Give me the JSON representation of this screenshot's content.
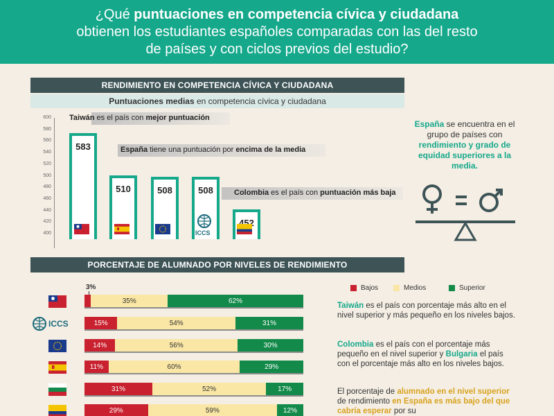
{
  "header": {
    "line1_pre": "¿Qué ",
    "line1_bold": "puntuaciones en competencia cívica y ciudadana",
    "line2": "obtienen los estudiantes españoles comparadas con las del resto",
    "line3": "de países y con ciclos previos del estudio?"
  },
  "section1": {
    "title": "RENDIMIENTO EN COMPETENCIA CÍVICA Y CIUDADANA",
    "subtitle_bold": "Puntuaciones medias",
    "subtitle_rest": " en competencia cívica y ciudadana"
  },
  "annotations": {
    "taiwan": {
      "a": "Taiwán",
      "b": " es el país con ",
      "c": "mejor puntuación"
    },
    "espana": {
      "a": "España",
      "b": " tiene una puntuación por ",
      "c": "encima de la media"
    },
    "colombia": {
      "a": "Colombia",
      "b": " es el país con ",
      "c": "puntuación más baja"
    }
  },
  "chart_data": {
    "type": "bar",
    "categories": [
      "Taiwán",
      "España",
      "UE",
      "ICCS",
      "Colombia"
    ],
    "values": [
      583,
      510,
      508,
      508,
      452
    ],
    "ylim": [
      400,
      600
    ],
    "yticks": [
      "600",
      "580",
      "560",
      "540",
      "520",
      "500",
      "480",
      "460",
      "440",
      "420",
      "400"
    ]
  },
  "iccs_label": "ICCS",
  "info_right": {
    "a": "España",
    "b": " se encuentra en el grupo de países con ",
    "c": "rendimiento y grado de equidad superiores a la media."
  },
  "section2": {
    "title": "PORCENTAJE DE ALUMNADO POR NIVELES DE RENDIMIENTO",
    "legend": {
      "bajos": "Bajos",
      "medios": "Medios",
      "superior": "Superior"
    },
    "top_label": "3%",
    "rows": [
      {
        "b": 3,
        "m": 35,
        "s": 62,
        "bl": "",
        "ml": "35%",
        "sl": "62%"
      },
      {
        "b": 15,
        "m": 54,
        "s": 31,
        "bl": "15%",
        "ml": "54%",
        "sl": "31%"
      },
      {
        "b": 14,
        "m": 56,
        "s": 30,
        "bl": "14%",
        "ml": "56%",
        "sl": "30%"
      },
      {
        "b": 11,
        "m": 60,
        "s": 29,
        "bl": "11%",
        "ml": "60%",
        "sl": "29%"
      },
      {
        "b": 31,
        "m": 52,
        "s": 17,
        "bl": "31%",
        "ml": "52%",
        "sl": "17%"
      },
      {
        "b": 29,
        "m": 59,
        "s": 12,
        "bl": "29%",
        "ml": "59%",
        "sl": "12%"
      }
    ]
  },
  "paragraphs": {
    "p1": {
      "a": "Taiwán",
      "b": " es el país con porcentaje más alto en el nivel superior y más pequeño en los niveles bajos."
    },
    "p2": {
      "a": "Colombia",
      "b": " es el país con el porcentaje más pequeño en el nivel superior y ",
      "c": "Bulgaria",
      "d": " el país con el porcentaje más alto en los niveles bajos."
    },
    "p3": {
      "a": "El porcentaje de ",
      "b": "alumnado en el nivel superior",
      "c": " de rendimiento ",
      "d": "en España es más bajo del que cabría esperar",
      "e": " por su"
    }
  },
  "colors": {
    "teal": "#15a88b",
    "dark": "#3d5356",
    "bajos": "#c9212f",
    "medios": "#fae7a5",
    "superior": "#138a4a"
  }
}
